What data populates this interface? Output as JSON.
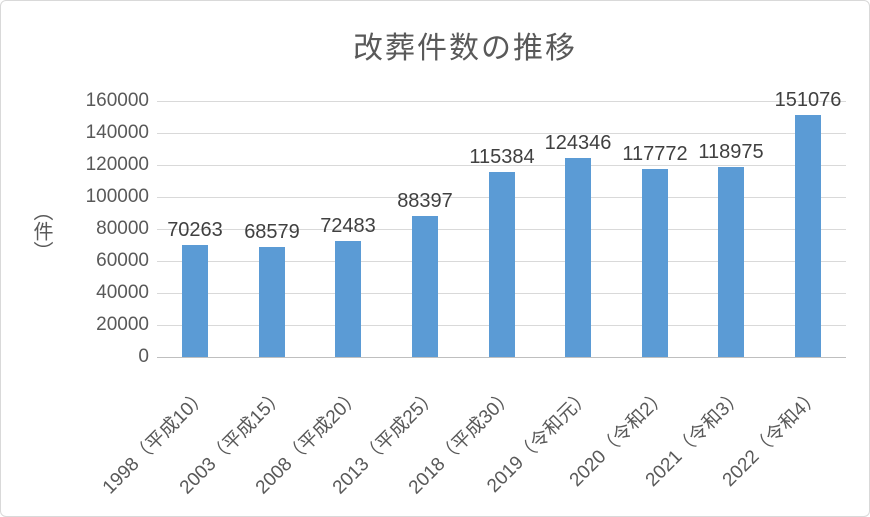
{
  "chart": {
    "title": "改葬件数の推移",
    "y_unit_label": "（件）"
  },
  "chart_data": {
    "type": "bar",
    "title": "改葬件数の推移",
    "categories": [
      "1998（平成10）",
      "2003（平成15）",
      "2008（平成20）",
      "2013（平成25）",
      "2018（平成30）",
      "2019（令和元）",
      "2020（令和2）",
      "2021（令和3）",
      "2022（令和4）"
    ],
    "values": [
      70263,
      68579,
      72483,
      88397,
      115384,
      124346,
      117772,
      118975,
      151076
    ],
    "xlabel": "",
    "ylabel": "（件）",
    "ylim": [
      0,
      160000
    ],
    "ytick_step": 20000,
    "yticks": [
      0,
      20000,
      40000,
      60000,
      80000,
      100000,
      120000,
      140000,
      160000
    ],
    "grid": true,
    "legend_position": "none",
    "data_labels_shown": true,
    "x_label_rotation_deg": 45,
    "colors": {
      "bar": "#5B9BD5",
      "gridline": "#D9D9D9",
      "axis_line": "#BFBFBF",
      "title_text": "#595959",
      "tick_text": "#595959",
      "data_label_text": "#404040",
      "background": "#FFFFFF",
      "frame_border": "#D9D9D9"
    }
  }
}
